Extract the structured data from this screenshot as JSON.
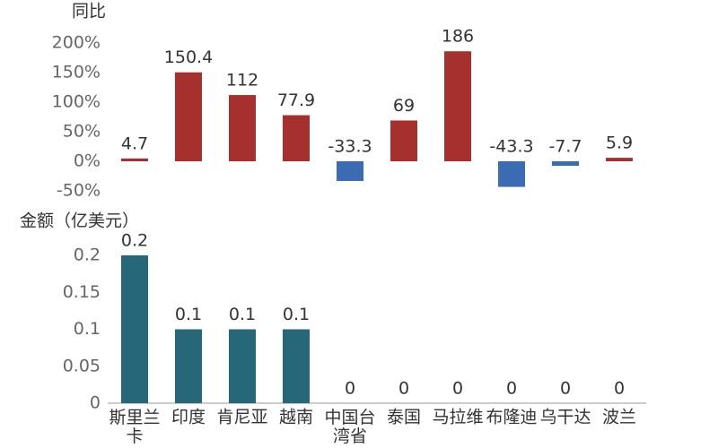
{
  "chart_data": [
    {
      "type": "bar",
      "title": "同比",
      "values": [
        4.7,
        150.4,
        112,
        77.9,
        -33.3,
        69,
        186,
        -43.3,
        -7.7,
        5.9
      ],
      "positive_color": "#a5302e",
      "negative_color": "#3b6bb3",
      "ylim": [
        -50,
        200
      ],
      "yticks": [
        {
          "value": -50,
          "label": "-50%"
        },
        {
          "value": 0,
          "label": "0%"
        },
        {
          "value": 50,
          "label": "50%"
        },
        {
          "value": 100,
          "label": "100%"
        },
        {
          "value": 150,
          "label": "150%"
        },
        {
          "value": 200,
          "label": "200%"
        }
      ]
    },
    {
      "type": "bar",
      "title": "金额（亿美元）",
      "categories": [
        "斯里兰卡",
        "印度",
        "肯尼亚",
        "越南",
        "中国台湾省",
        "泰国",
        "马拉维",
        "布隆迪",
        "乌干达",
        "波兰"
      ],
      "values": [
        0.2,
        0.1,
        0.1,
        0.1,
        0,
        0,
        0,
        0,
        0,
        0
      ],
      "color": "#26687a",
      "ylim": [
        0,
        0.2
      ],
      "yticks": [
        0,
        0.05,
        0.1,
        0.15,
        0.2
      ]
    }
  ]
}
